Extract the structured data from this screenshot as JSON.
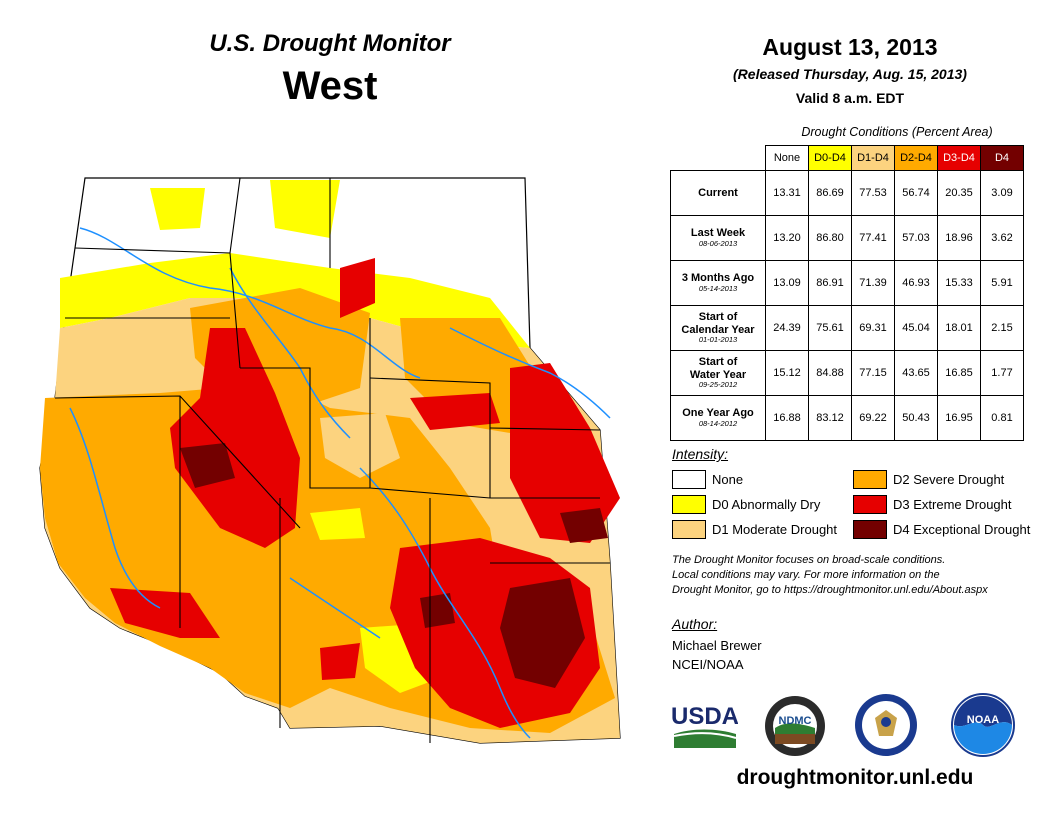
{
  "header": {
    "title": "U.S. Drought Monitor",
    "region": "West",
    "date": "August 13, 2013",
    "released": "(Released Thursday, Aug. 15, 2013)",
    "valid": "Valid 8 a.m. EDT"
  },
  "table": {
    "caption": "Drought Conditions (Percent Area)",
    "columns": [
      {
        "label": "None",
        "bg": "#ffffff",
        "fg": "#000000"
      },
      {
        "label": "D0-D4",
        "bg": "#ffff00",
        "fg": "#000000"
      },
      {
        "label": "D1-D4",
        "bg": "#fcd37f",
        "fg": "#000000"
      },
      {
        "label": "D2-D4",
        "bg": "#ffaa00",
        "fg": "#000000"
      },
      {
        "label": "D3-D4",
        "bg": "#e60000",
        "fg": "#ffffff"
      },
      {
        "label": "D4",
        "bg": "#730000",
        "fg": "#ffffff"
      }
    ],
    "rows": [
      {
        "label": [
          "Current"
        ],
        "date": "",
        "values": [
          "13.31",
          "86.69",
          "77.53",
          "56.74",
          "20.35",
          "3.09"
        ]
      },
      {
        "label": [
          "Last Week"
        ],
        "date": "08-06-2013",
        "values": [
          "13.20",
          "86.80",
          "77.41",
          "57.03",
          "18.96",
          "3.62"
        ]
      },
      {
        "label": [
          "3 Months Ago"
        ],
        "date": "05-14-2013",
        "values": [
          "13.09",
          "86.91",
          "71.39",
          "46.93",
          "15.33",
          "5.91"
        ]
      },
      {
        "label": [
          "Start of",
          "Calendar Year"
        ],
        "date": "01-01-2013",
        "values": [
          "24.39",
          "75.61",
          "69.31",
          "45.04",
          "18.01",
          "2.15"
        ]
      },
      {
        "label": [
          "Start of",
          "Water Year"
        ],
        "date": "09-25-2012",
        "values": [
          "15.12",
          "84.88",
          "77.15",
          "43.65",
          "16.85",
          "1.77"
        ]
      },
      {
        "label": [
          "One Year Ago"
        ],
        "date": "08-14-2012",
        "values": [
          "16.88",
          "83.12",
          "69.22",
          "50.43",
          "16.95",
          "0.81"
        ]
      }
    ]
  },
  "legend": {
    "title": "Intensity:",
    "items": [
      {
        "label": "None",
        "color": "#ffffff"
      },
      {
        "label": "D0 Abnormally Dry",
        "color": "#ffff00"
      },
      {
        "label": "D1 Moderate Drought",
        "color": "#fcd37f"
      },
      {
        "label": "D2 Severe Drought",
        "color": "#ffaa00"
      },
      {
        "label": "D3 Extreme Drought",
        "color": "#e60000"
      },
      {
        "label": "D4 Exceptional Drought",
        "color": "#730000"
      }
    ]
  },
  "note": {
    "line1": "The Drought Monitor focuses on broad-scale conditions.",
    "line2": "Local conditions may vary. For more information on the",
    "line3": "Drought Monitor, go to https://droughtmonitor.unl.edu/About.aspx"
  },
  "author": {
    "title": "Author:",
    "name": "Michael Brewer",
    "org": "NCEI/NOAA"
  },
  "logos": {
    "usda": "USDA",
    "ndmc": "NDMC",
    "noaa": "NOAA"
  },
  "url": "droughtmonitor.unl.edu",
  "map_colors": {
    "none": "#ffffff",
    "d0": "#ffff00",
    "d1": "#fcd37f",
    "d2": "#ffaa00",
    "d3": "#e60000",
    "d4": "#730000",
    "river": "#1e90ff",
    "border": "#000000"
  }
}
